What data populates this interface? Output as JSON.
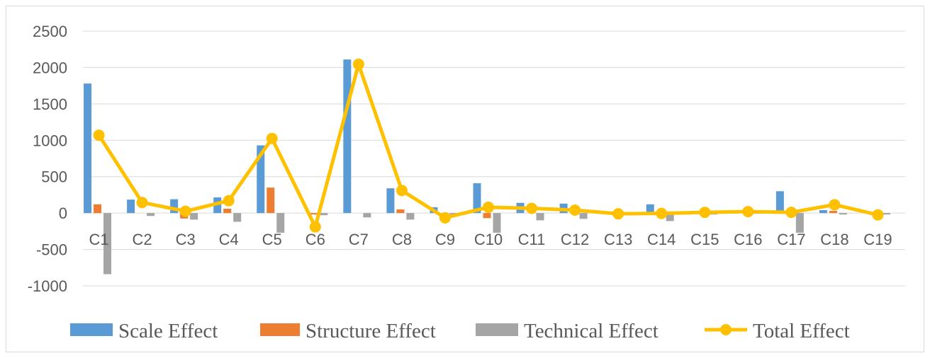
{
  "chart_data": {
    "type": "bar",
    "title": "",
    "xlabel": "",
    "ylabel": "",
    "ylim": [
      -1000,
      2500
    ],
    "yticks": [
      "2500",
      "2000",
      "1500",
      "1000",
      "500",
      "0",
      "-500",
      "-1000"
    ],
    "categories": [
      "C1",
      "C2",
      "C3",
      "C4",
      "C5",
      "C6",
      "C7",
      "C8",
      "C9",
      "C10",
      "C11",
      "C12",
      "C13",
      "C14",
      "C15",
      "C16",
      "C17",
      "C18",
      "C19"
    ],
    "grid": "horizontal",
    "legend_position": "bottom",
    "series": [
      {
        "name": "Scale Effect",
        "type": "bar",
        "color": "#5B9BD5",
        "values": [
          1780,
          185,
          190,
          215,
          930,
          0,
          2110,
          340,
          80,
          410,
          140,
          130,
          0,
          120,
          0,
          0,
          300,
          40,
          0
        ]
      },
      {
        "name": "Structure Effect",
        "type": "bar",
        "color": "#ED7D31",
        "values": [
          120,
          0,
          -75,
          60,
          350,
          -20,
          0,
          50,
          0,
          -70,
          0,
          0,
          0,
          0,
          0,
          0,
          0,
          30,
          0
        ]
      },
      {
        "name": "Technical Effect",
        "type": "bar",
        "color": "#A5A5A5",
        "values": [
          -840,
          -40,
          -90,
          -120,
          -270,
          -30,
          -60,
          -90,
          -30,
          -270,
          -100,
          -80,
          -10,
          -110,
          -20,
          -10,
          -270,
          -20,
          -20
        ]
      },
      {
        "name": "Total Effect",
        "type": "line",
        "color": "#FFC000",
        "values": [
          1070,
          145,
          25,
          170,
          1025,
          -190,
          2045,
          310,
          -65,
          80,
          65,
          40,
          -10,
          -5,
          10,
          20,
          10,
          115,
          -25
        ]
      }
    ]
  }
}
